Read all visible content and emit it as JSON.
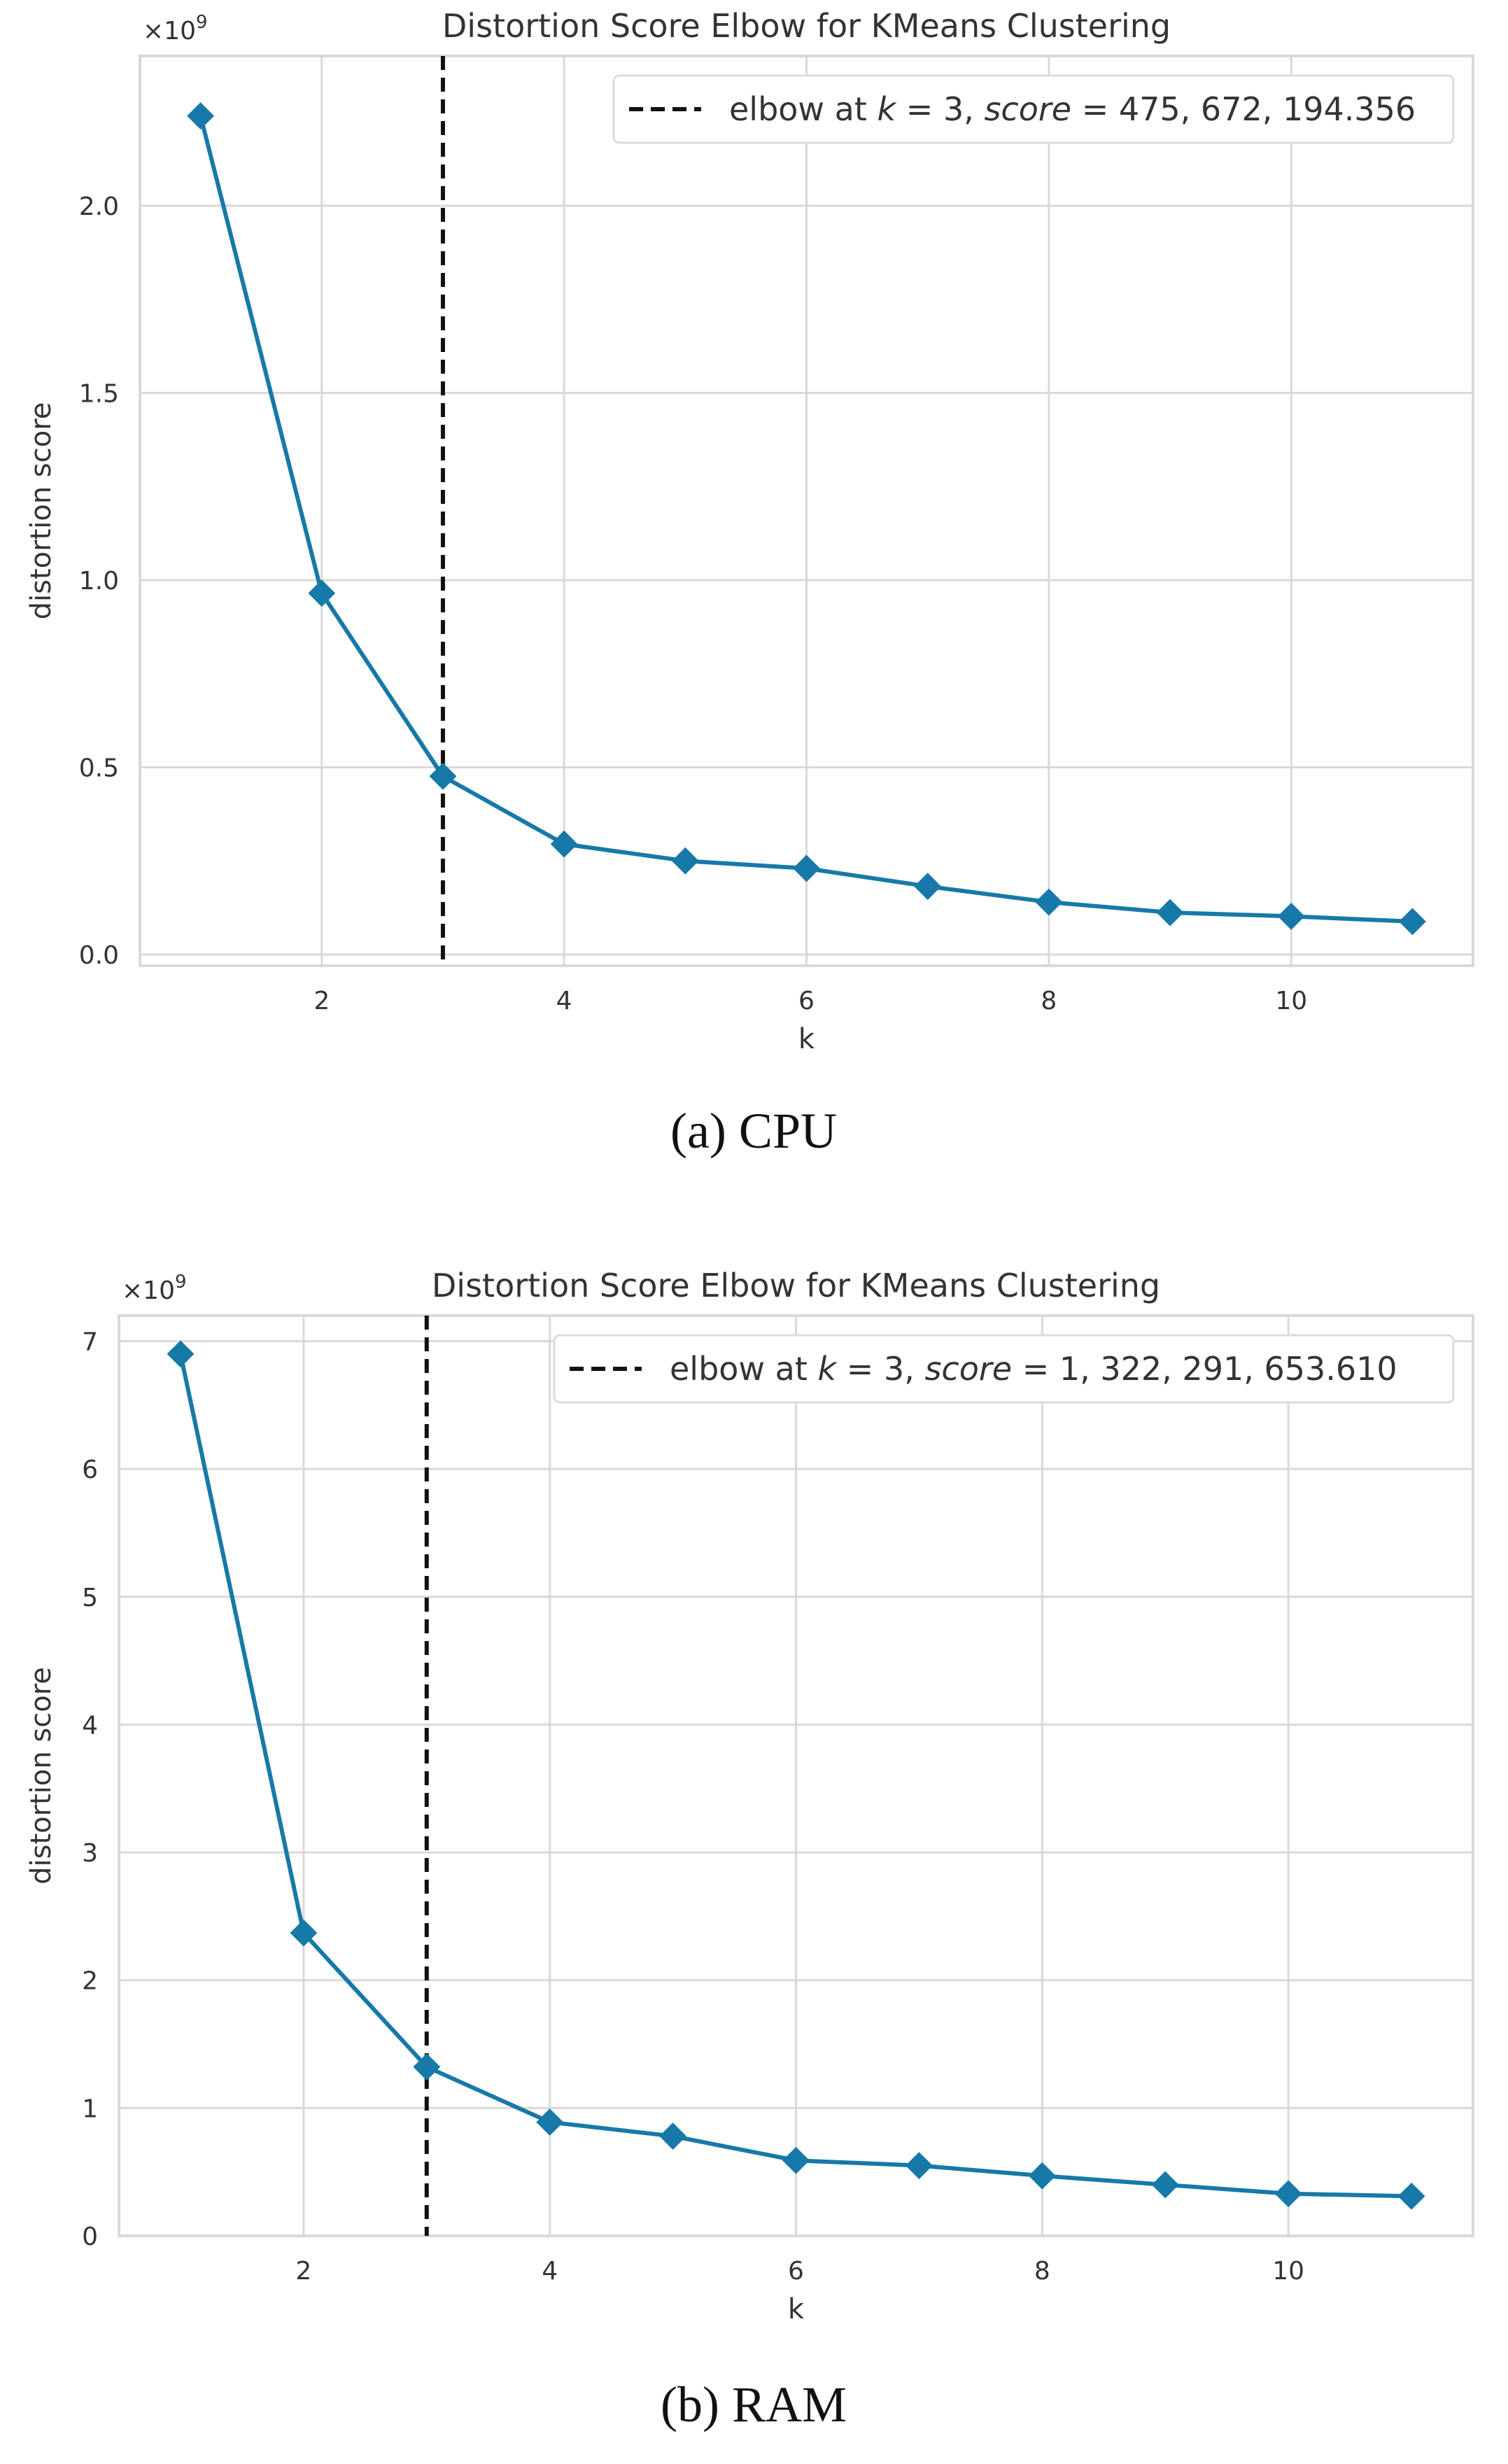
{
  "chart_data": [
    {
      "type": "line",
      "title": "Distortion Score Elbow for KMeans Clustering",
      "xlabel": "k",
      "ylabel": "distortion score",
      "y_scale_label": "×10",
      "y_scale_exp": "9",
      "xlim": [
        0.5,
        11.5
      ],
      "ylim": [
        -0.03,
        2.4
      ],
      "xticks": [
        2,
        4,
        6,
        8,
        10
      ],
      "xtick_labels": [
        "2",
        "4",
        "6",
        "8",
        "10"
      ],
      "yticks": [
        0,
        0.5,
        1.0,
        1.5,
        2.0
      ],
      "ytick_labels": [
        "0.0",
        "0.5",
        "1.0",
        "1.5",
        "2.0"
      ],
      "x": [
        1,
        2,
        3,
        4,
        5,
        6,
        7,
        8,
        9,
        10,
        11
      ],
      "y": [
        2.24,
        0.965,
        0.476,
        0.295,
        0.25,
        0.23,
        0.182,
        0.14,
        0.112,
        0.102,
        0.088
      ],
      "elbow_k": 3,
      "legend": {
        "position": "top-right",
        "label_prefix": "elbow at ",
        "label_k": "k",
        "label_eq1": " = 3, ",
        "label_score": "score",
        "label_value": " = 475, 672, 194.356"
      },
      "caption_letter": "(a)",
      "caption_text": " CPU",
      "line_color": "#1f77b4",
      "grid": true
    },
    {
      "type": "line",
      "title": "Distortion Score Elbow for KMeans Clustering",
      "xlabel": "k",
      "ylabel": "distortion score",
      "y_scale_label": "×10",
      "y_scale_exp": "9",
      "xlim": [
        0.5,
        11.5
      ],
      "ylim": [
        0,
        7.2
      ],
      "xticks": [
        2,
        4,
        6,
        8,
        10
      ],
      "xtick_labels": [
        "2",
        "4",
        "6",
        "8",
        "10"
      ],
      "yticks": [
        0,
        1,
        2,
        3,
        4,
        5,
        6,
        7
      ],
      "ytick_labels": [
        "0",
        "1",
        "2",
        "3",
        "4",
        "5",
        "6",
        "7"
      ],
      "x": [
        1,
        2,
        3,
        4,
        5,
        6,
        7,
        8,
        9,
        10,
        11
      ],
      "y": [
        6.9,
        2.37,
        1.322,
        0.89,
        0.78,
        0.59,
        0.55,
        0.47,
        0.4,
        0.33,
        0.31
      ],
      "elbow_k": 3,
      "legend": {
        "position": "top-right",
        "label_prefix": "elbow at ",
        "label_k": "k",
        "label_eq1": " = 3, ",
        "label_score": "score",
        "label_value": " = 1, 322, 291, 653.610"
      },
      "caption_letter": "(b)",
      "caption_text": " RAM",
      "line_color": "#1f77b4",
      "grid": true
    }
  ]
}
